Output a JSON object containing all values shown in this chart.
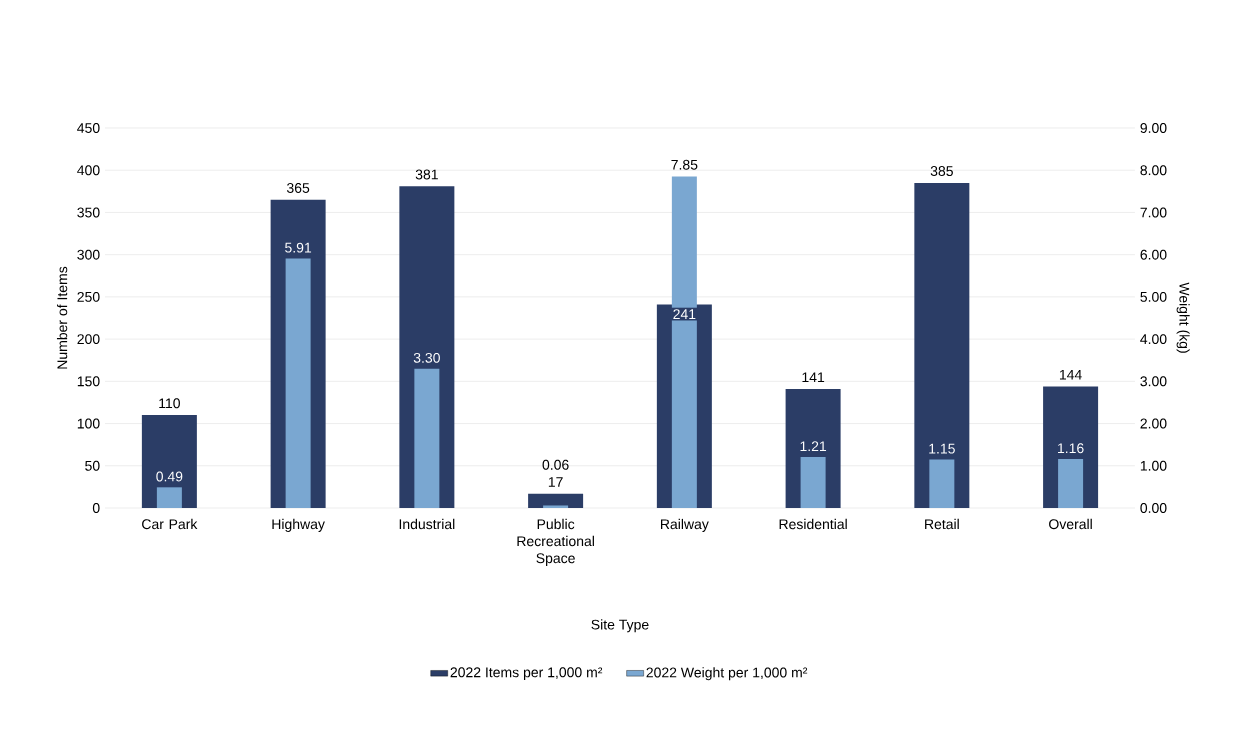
{
  "chart_data": {
    "type": "bar",
    "categories": [
      "Car Park",
      "Highway",
      "Industrial",
      "Public Recreational Space",
      "Railway",
      "Residential",
      "Retail",
      "Overall"
    ],
    "xlabel": "Site Type",
    "ylabel": "Number of Items",
    "y2label": "Weight (kg)",
    "ylim": [
      0,
      450
    ],
    "yticks": [
      0,
      50,
      100,
      150,
      200,
      250,
      300,
      350,
      400,
      450
    ],
    "y2lim": [
      0,
      9
    ],
    "y2ticks": [
      {
        "value": 0,
        "label": "0.00"
      },
      {
        "value": 1,
        "label": "1.00"
      },
      {
        "value": 2,
        "label": "2.00"
      },
      {
        "value": 3,
        "label": "3.00"
      },
      {
        "value": 4,
        "label": "4.00"
      },
      {
        "value": 5,
        "label": "5.00"
      },
      {
        "value": 6,
        "label": "6.00"
      },
      {
        "value": 7,
        "label": "7.00"
      },
      {
        "value": 8,
        "label": "8.00"
      },
      {
        "value": 9,
        "label": "9.00"
      }
    ],
    "grid": "y",
    "legend": "bottom",
    "series": [
      {
        "name": "2022 Items per 1,000 m²",
        "color": "#2b3d66",
        "values": [
          110,
          365,
          381,
          17,
          241,
          141,
          385,
          144
        ],
        "value_labels": [
          "110",
          "365",
          "381",
          "17",
          "241",
          "141",
          "385",
          "144"
        ]
      },
      {
        "name": "2022 Weight per 1,000 m²",
        "color": "#7aa7d1",
        "axis": "y2",
        "values": [
          0.49,
          5.91,
          3.3,
          0.06,
          7.85,
          1.21,
          1.15,
          1.16
        ],
        "value_labels": [
          "0.49",
          "5.91",
          "3.30",
          "0.06",
          "7.85",
          "1.21",
          "1.15",
          "1.16"
        ]
      }
    ]
  }
}
